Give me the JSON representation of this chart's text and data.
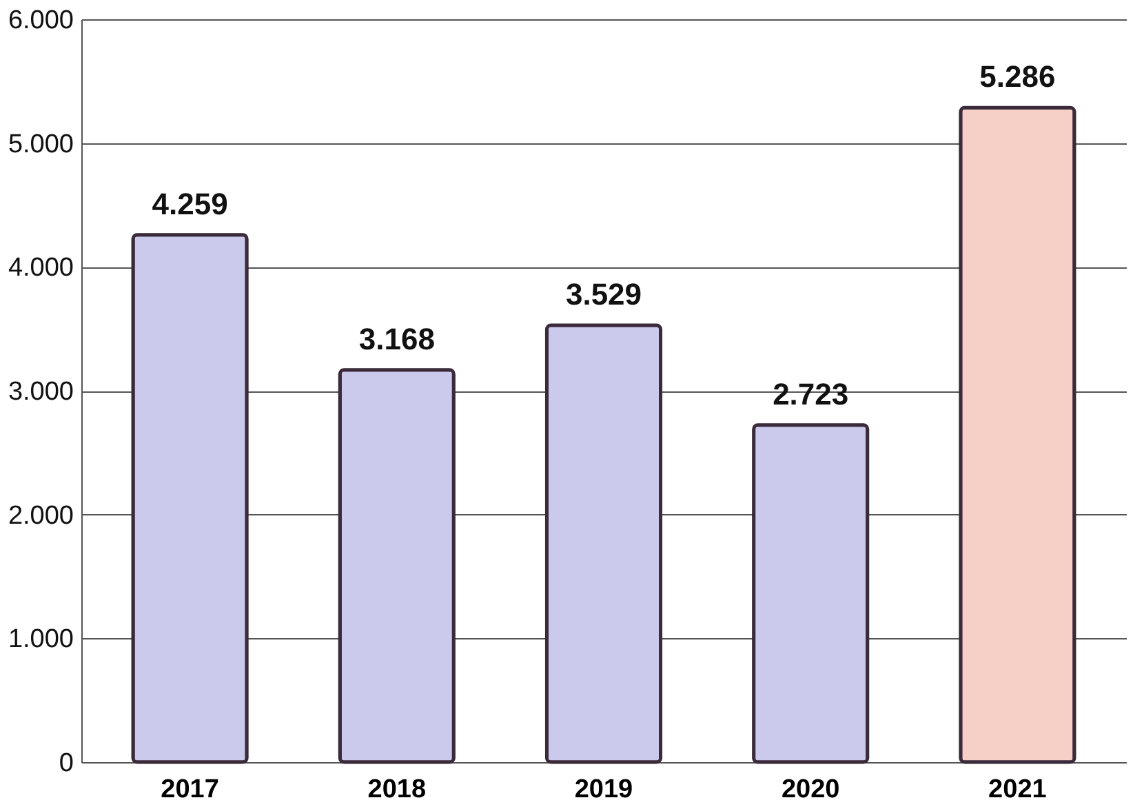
{
  "chart_data": {
    "type": "bar",
    "categories": [
      "2017",
      "2018",
      "2019",
      "2020",
      "2021"
    ],
    "values": [
      4259,
      3168,
      3529,
      2723,
      5286
    ],
    "colors": [
      "#cbc9ec",
      "#cbc9ec",
      "#cbc9ec",
      "#cbc9ec",
      "#f6cfc6"
    ],
    "value_labels": [
      "4.259",
      "3.168",
      "3.529",
      "2.723",
      "5.286"
    ],
    "ylim": [
      0,
      6000
    ],
    "yticks": [
      0,
      {
        "value": 1000,
        "label": "1.000"
      },
      {
        "value": 2000,
        "label": "2.000"
      },
      {
        "value": 3000,
        "label": "3.000"
      },
      {
        "value": 4000,
        "label": "4.000"
      },
      {
        "value": 5000,
        "label": "5.000"
      },
      {
        "value": 6000,
        "label": "6.000"
      }
    ],
    "grid": "y"
  }
}
